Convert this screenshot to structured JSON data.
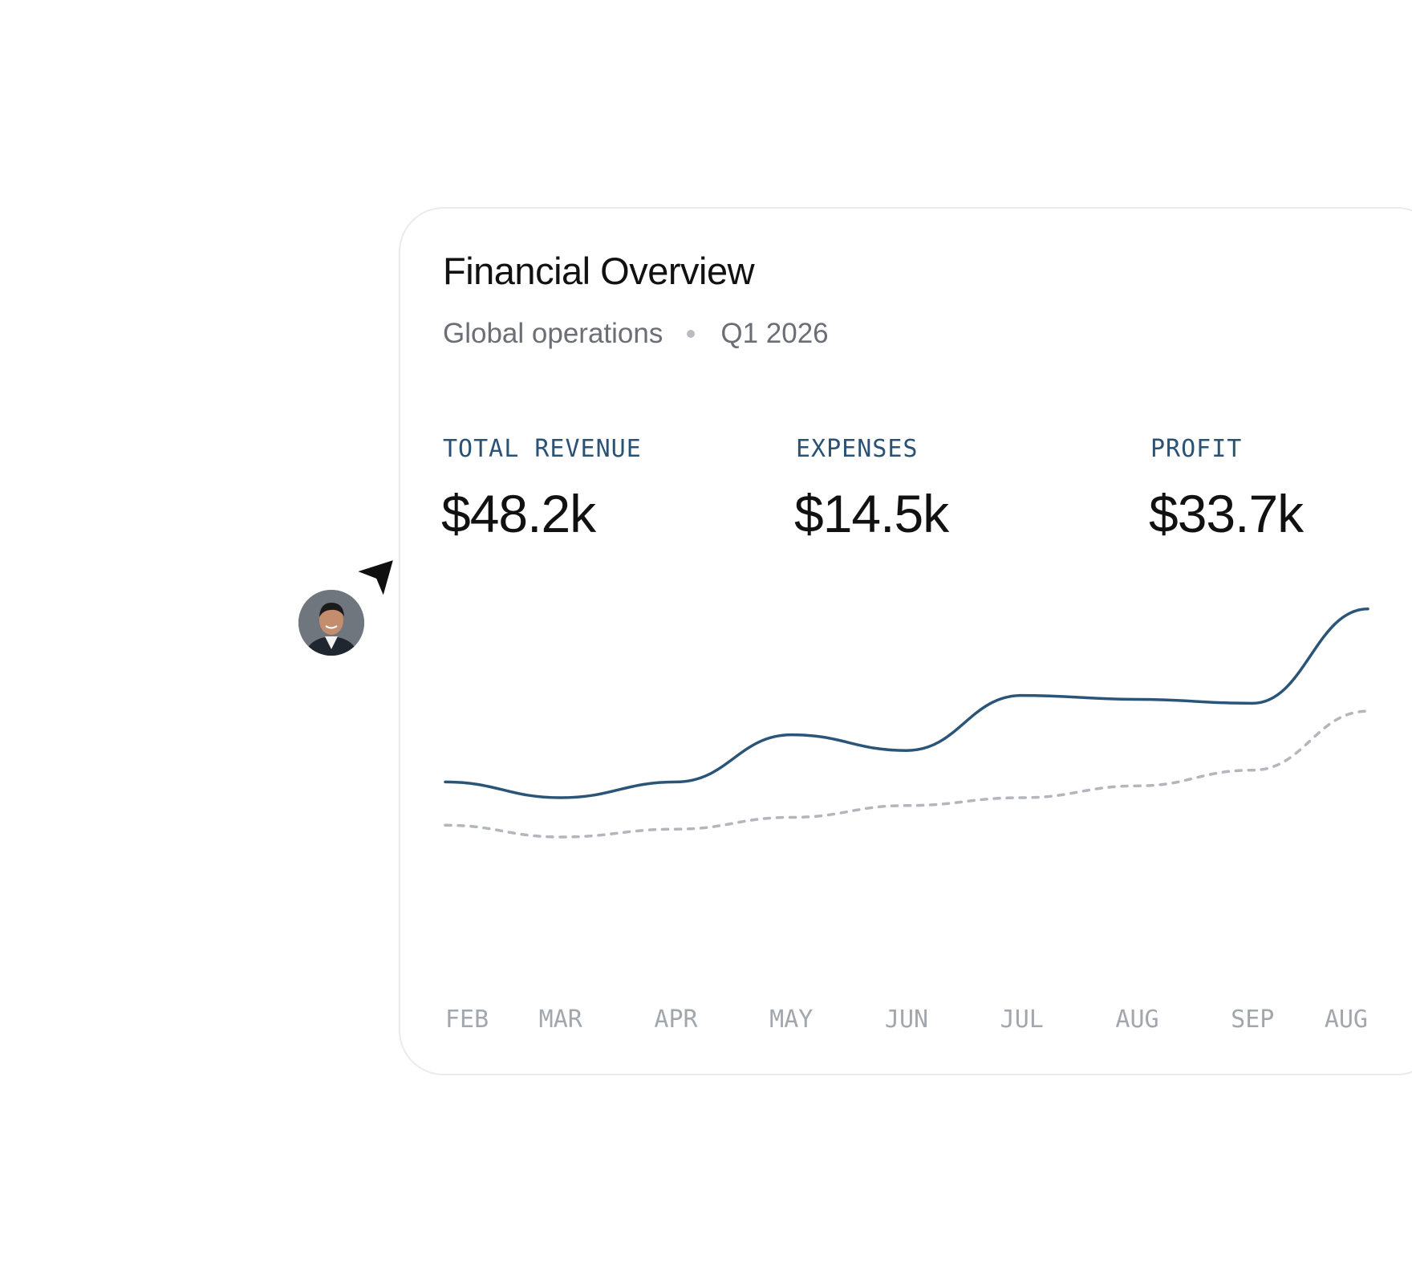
{
  "card": {
    "title": "Financial Overview",
    "subtitle_scope": "Global operations",
    "subtitle_period": "Q1 2026"
  },
  "kpis": [
    {
      "label": "TOTAL REVENUE",
      "value": "$48.2k"
    },
    {
      "label": "EXPENSES",
      "value": "$14.5k"
    },
    {
      "label": "PROFIT",
      "value": "$33.7k"
    }
  ],
  "colors": {
    "primary_line": "#2b5578",
    "secondary_line": "#b3b7bd",
    "kpi_label": "#2a5275"
  },
  "icons": {
    "cursor": "cursor-arrow-icon",
    "avatar": "user-avatar"
  },
  "chart_data": {
    "type": "line",
    "categories": [
      "FEB",
      "MAR",
      "APR",
      "MAY",
      "JUN",
      "JUL",
      "AUG",
      "SEP",
      "AUG"
    ],
    "series": [
      {
        "style": "solid",
        "values": [
          0.44,
          0.4,
          0.44,
          0.56,
          0.52,
          0.66,
          0.65,
          0.64,
          0.88
        ]
      },
      {
        "style": "dotted",
        "values": [
          0.33,
          0.3,
          0.32,
          0.35,
          0.38,
          0.4,
          0.43,
          0.47,
          0.62
        ]
      }
    ],
    "ylim": [
      0,
      1
    ],
    "grid": false,
    "legend": "none"
  }
}
